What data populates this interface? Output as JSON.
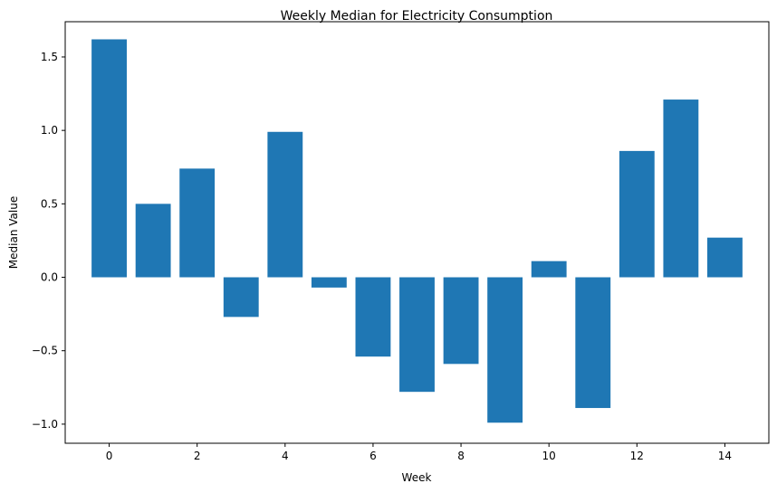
{
  "chart_data": {
    "type": "bar",
    "title": "Weekly Median for Electricity Consumption",
    "xlabel": "Week",
    "ylabel": "Median Value",
    "x": [
      0,
      1,
      2,
      3,
      4,
      5,
      6,
      7,
      8,
      9,
      10,
      11,
      12,
      13,
      14
    ],
    "values": [
      1.62,
      0.5,
      0.74,
      -0.27,
      0.99,
      -0.07,
      -0.54,
      -0.78,
      -0.59,
      -0.99,
      0.11,
      -0.89,
      0.86,
      1.21,
      0.27
    ],
    "xlim": [
      -1.0,
      15.0
    ],
    "ylim": [
      -1.13,
      1.74
    ],
    "xticks": [
      0,
      2,
      4,
      6,
      8,
      10,
      12,
      14
    ],
    "xtick_labels": [
      "0",
      "2",
      "4",
      "6",
      "8",
      "10",
      "12",
      "14"
    ],
    "yticks": [
      -1.0,
      -0.5,
      0.0,
      0.5,
      1.0,
      1.5
    ],
    "ytick_labels": [
      "−1.0",
      "−0.5",
      "0.0",
      "0.5",
      "1.0",
      "1.5"
    ],
    "bar_color": "#1f77b4",
    "grid": false,
    "legend": "none"
  }
}
